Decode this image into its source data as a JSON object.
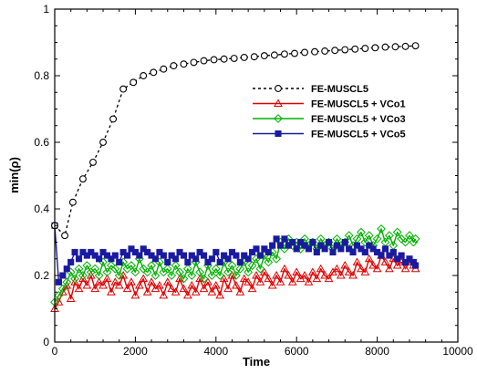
{
  "chart_data": {
    "type": "line",
    "title": "",
    "xlabel": "Time",
    "ylabel": "min(ρ)",
    "xlim": [
      0,
      10000
    ],
    "ylim": [
      0,
      1
    ],
    "x_ticks": [
      0,
      2000,
      4000,
      6000,
      8000,
      10000
    ],
    "y_ticks": [
      0,
      0.2,
      0.4,
      0.6,
      0.8,
      1
    ],
    "x_tick_labels": [
      "0",
      "2000",
      "4000",
      "6000",
      "8000",
      "10000"
    ],
    "y_tick_labels": [
      "0",
      "0.2",
      "0.4",
      "0.6",
      "0.8",
      "1"
    ],
    "grid": false,
    "legend_position": "right-middle",
    "series": [
      {
        "name": "FE-MUSCL5",
        "color": "#000000",
        "line": "dashed",
        "marker": "circle-open",
        "x": [
          0,
          250,
          450,
          700,
          950,
          1200,
          1450,
          1700,
          1950,
          2200,
          2450,
          2700,
          2950,
          3200,
          3450,
          3700,
          3950,
          4200,
          4450,
          4700,
          4950,
          5200,
          5450,
          5700,
          5950,
          6200,
          6450,
          6700,
          6950,
          7200,
          7450,
          7700,
          7950,
          8200,
          8450,
          8700,
          8950
        ],
        "y": [
          0.35,
          0.32,
          0.42,
          0.49,
          0.54,
          0.6,
          0.67,
          0.76,
          0.78,
          0.8,
          0.81,
          0.82,
          0.83,
          0.835,
          0.84,
          0.845,
          0.848,
          0.85,
          0.852,
          0.855,
          0.857,
          0.86,
          0.862,
          0.865,
          0.867,
          0.87,
          0.872,
          0.874,
          0.876,
          0.878,
          0.88,
          0.882,
          0.884,
          0.886,
          0.887,
          0.888,
          0.89
        ]
      },
      {
        "name": "FE-MUSCL5 + VCo1",
        "color": "#e00000",
        "line": "solid",
        "marker": "triangle-open",
        "x": [
          0,
          100,
          200,
          300,
          400,
          500,
          600,
          700,
          800,
          900,
          1000,
          1100,
          1200,
          1300,
          1400,
          1500,
          1600,
          1700,
          1800,
          1900,
          2000,
          2100,
          2200,
          2300,
          2400,
          2500,
          2600,
          2700,
          2800,
          2900,
          3000,
          3100,
          3200,
          3300,
          3400,
          3500,
          3600,
          3700,
          3800,
          3900,
          4000,
          4100,
          4200,
          4300,
          4400,
          4500,
          4600,
          4700,
          4800,
          4900,
          5000,
          5100,
          5200,
          5300,
          5400,
          5500,
          5600,
          5700,
          5800,
          5900,
          6000,
          6100,
          6200,
          6300,
          6400,
          6500,
          6600,
          6700,
          6800,
          6900,
          7000,
          7100,
          7200,
          7300,
          7400,
          7500,
          7600,
          7700,
          7800,
          7900,
          8000,
          8100,
          8200,
          8300,
          8400,
          8500,
          8600,
          8700,
          8800,
          8900,
          8950
        ],
        "y": [
          0.1,
          0.12,
          0.15,
          0.17,
          0.13,
          0.18,
          0.16,
          0.19,
          0.17,
          0.2,
          0.16,
          0.18,
          0.17,
          0.19,
          0.15,
          0.18,
          0.17,
          0.2,
          0.16,
          0.18,
          0.14,
          0.17,
          0.19,
          0.15,
          0.18,
          0.16,
          0.17,
          0.14,
          0.18,
          0.16,
          0.15,
          0.19,
          0.16,
          0.14,
          0.17,
          0.15,
          0.19,
          0.16,
          0.18,
          0.15,
          0.17,
          0.14,
          0.19,
          0.16,
          0.2,
          0.17,
          0.15,
          0.19,
          0.18,
          0.16,
          0.2,
          0.18,
          0.21,
          0.19,
          0.17,
          0.2,
          0.18,
          0.22,
          0.2,
          0.18,
          0.21,
          0.19,
          0.2,
          0.18,
          0.21,
          0.19,
          0.22,
          0.2,
          0.19,
          0.21,
          0.22,
          0.2,
          0.23,
          0.21,
          0.2,
          0.24,
          0.22,
          0.21,
          0.25,
          0.23,
          0.22,
          0.26,
          0.24,
          0.22,
          0.25,
          0.23,
          0.24,
          0.22,
          0.24,
          0.23,
          0.22
        ]
      },
      {
        "name": "FE-MUSCL5 + VCo3",
        "color": "#00b000",
        "line": "solid",
        "marker": "diamond-open",
        "x": [
          0,
          100,
          200,
          300,
          400,
          500,
          600,
          700,
          800,
          900,
          1000,
          1100,
          1200,
          1300,
          1400,
          1500,
          1600,
          1700,
          1800,
          1900,
          2000,
          2100,
          2200,
          2300,
          2400,
          2500,
          2600,
          2700,
          2800,
          2900,
          3000,
          3100,
          3200,
          3300,
          3400,
          3500,
          3600,
          3700,
          3800,
          3900,
          4000,
          4100,
          4200,
          4300,
          4400,
          4500,
          4600,
          4700,
          4800,
          4900,
          5000,
          5100,
          5200,
          5300,
          5400,
          5500,
          5600,
          5700,
          5800,
          5900,
          6000,
          6100,
          6200,
          6300,
          6400,
          6500,
          6600,
          6700,
          6800,
          6900,
          7000,
          7100,
          7200,
          7300,
          7400,
          7500,
          7600,
          7700,
          7800,
          7900,
          8000,
          8100,
          8200,
          8300,
          8400,
          8500,
          8600,
          8700,
          8800,
          8900,
          8950
        ],
        "y": [
          0.12,
          0.14,
          0.16,
          0.18,
          0.21,
          0.19,
          0.22,
          0.2,
          0.23,
          0.21,
          0.22,
          0.2,
          0.24,
          0.21,
          0.23,
          0.22,
          0.2,
          0.24,
          0.22,
          0.23,
          0.21,
          0.25,
          0.22,
          0.21,
          0.23,
          0.2,
          0.24,
          0.21,
          0.22,
          0.2,
          0.23,
          0.21,
          0.19,
          0.22,
          0.2,
          0.24,
          0.21,
          0.19,
          0.23,
          0.2,
          0.22,
          0.2,
          0.24,
          0.21,
          0.23,
          0.2,
          0.22,
          0.24,
          0.21,
          0.23,
          0.25,
          0.22,
          0.26,
          0.24,
          0.27,
          0.25,
          0.3,
          0.28,
          0.31,
          0.29,
          0.3,
          0.28,
          0.31,
          0.29,
          0.3,
          0.28,
          0.31,
          0.29,
          0.3,
          0.28,
          0.31,
          0.29,
          0.3,
          0.32,
          0.29,
          0.31,
          0.33,
          0.3,
          0.32,
          0.29,
          0.31,
          0.34,
          0.3,
          0.32,
          0.29,
          0.33,
          0.31,
          0.3,
          0.32,
          0.3,
          0.31
        ]
      },
      {
        "name": "FE-MUSCL5 + VCo5",
        "color": "#1a1aa0",
        "line": "solid",
        "marker": "square-filled",
        "x": [
          0,
          100,
          200,
          300,
          400,
          500,
          600,
          700,
          800,
          900,
          1000,
          1100,
          1200,
          1300,
          1400,
          1500,
          1600,
          1700,
          1800,
          1900,
          2000,
          2100,
          2200,
          2300,
          2400,
          2500,
          2600,
          2700,
          2800,
          2900,
          3000,
          3100,
          3200,
          3300,
          3400,
          3500,
          3600,
          3700,
          3800,
          3900,
          4000,
          4100,
          4200,
          4300,
          4400,
          4500,
          4600,
          4700,
          4800,
          4900,
          5000,
          5100,
          5200,
          5300,
          5400,
          5500,
          5600,
          5700,
          5800,
          5900,
          6000,
          6100,
          6200,
          6300,
          6400,
          6500,
          6600,
          6700,
          6800,
          6900,
          7000,
          7100,
          7200,
          7300,
          7400,
          7500,
          7600,
          7700,
          7800,
          7900,
          8000,
          8100,
          8200,
          8300,
          8400,
          8500,
          8600,
          8700,
          8800,
          8900,
          8950
        ],
        "y": [
          0.35,
          0.18,
          0.2,
          0.22,
          0.24,
          0.27,
          0.25,
          0.27,
          0.26,
          0.27,
          0.26,
          0.25,
          0.27,
          0.26,
          0.25,
          0.26,
          0.24,
          0.27,
          0.26,
          0.28,
          0.27,
          0.26,
          0.28,
          0.27,
          0.26,
          0.25,
          0.27,
          0.26,
          0.24,
          0.26,
          0.25,
          0.27,
          0.26,
          0.24,
          0.26,
          0.25,
          0.27,
          0.26,
          0.24,
          0.25,
          0.27,
          0.24,
          0.26,
          0.25,
          0.27,
          0.26,
          0.24,
          0.26,
          0.25,
          0.27,
          0.28,
          0.26,
          0.28,
          0.27,
          0.29,
          0.31,
          0.29,
          0.31,
          0.29,
          0.3,
          0.28,
          0.3,
          0.29,
          0.28,
          0.3,
          0.27,
          0.29,
          0.28,
          0.3,
          0.27,
          0.29,
          0.28,
          0.3,
          0.28,
          0.27,
          0.29,
          0.28,
          0.27,
          0.29,
          0.28,
          0.27,
          0.26,
          0.28,
          0.26,
          0.27,
          0.25,
          0.26,
          0.24,
          0.25,
          0.24,
          0.23
        ]
      }
    ]
  }
}
